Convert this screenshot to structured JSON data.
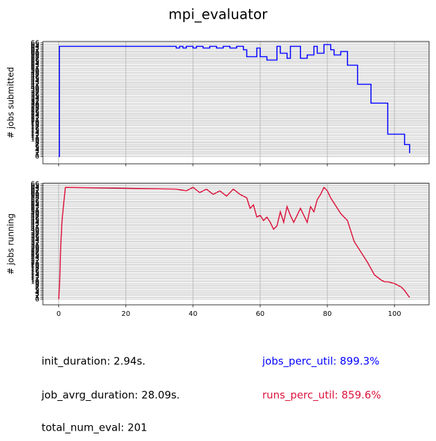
{
  "title": "mpi_evaluator",
  "chart_data": [
    {
      "type": "line",
      "drawstyle": "steps-post",
      "ylabel": "# jobs submitted",
      "x": [
        0,
        0.2,
        35,
        36,
        37,
        38,
        40,
        41,
        43,
        45,
        47,
        49,
        51,
        53,
        55,
        56,
        59,
        60,
        62,
        65,
        66,
        68,
        69,
        72,
        74,
        76,
        77,
        79,
        81,
        82,
        84,
        86,
        89,
        93,
        98,
        103,
        104.5
      ],
      "series": [
        {
          "color": "#0000ff",
          "values": [
            0,
            64,
            63,
            64,
            63,
            64,
            63,
            64,
            63,
            64,
            63,
            64,
            63,
            64,
            62,
            58,
            63,
            58,
            56,
            64,
            60,
            57,
            64,
            57,
            59,
            64,
            60,
            65,
            62,
            59,
            61,
            53,
            42,
            31,
            13,
            7,
            2
          ]
        }
      ],
      "xlim": [
        -4.7,
        110.3
      ],
      "xticks": [
        0,
        20,
        40,
        60,
        80,
        100
      ],
      "show_xtick_labels": false,
      "ylim": [
        -4.2,
        66.8
      ],
      "yticks": [
        0,
        1,
        2,
        3,
        4,
        5,
        6,
        7,
        8,
        9,
        10,
        11,
        12,
        13,
        14,
        15,
        16,
        17,
        18,
        19,
        20,
        21,
        22,
        23,
        24,
        25,
        26,
        27,
        28,
        29,
        30,
        31,
        32,
        33,
        34,
        35,
        36,
        37,
        38,
        39,
        40,
        41,
        42,
        43,
        44,
        45,
        46,
        47,
        48,
        49,
        50,
        51,
        52,
        53,
        54,
        55,
        56,
        57,
        58,
        59,
        60,
        61,
        62,
        63,
        64,
        65,
        66
      ],
      "grid": true
    },
    {
      "type": "line",
      "drawstyle": "default",
      "ylabel": "# jobs running",
      "x": [
        0,
        0.3,
        0.6,
        1,
        1.5,
        2,
        35,
        38,
        40,
        42,
        44,
        46,
        48,
        50,
        52,
        54,
        56,
        57,
        58,
        59,
        60,
        61,
        62,
        63,
        64,
        65,
        66,
        67,
        68,
        69,
        70,
        72,
        74,
        75,
        76,
        77,
        78,
        79,
        80,
        81,
        82,
        84,
        86,
        88,
        90,
        92,
        94,
        96,
        97,
        98,
        100,
        102,
        103,
        104.5
      ],
      "series": [
        {
          "color": "#dc143c",
          "values": [
            0,
            10,
            30,
            45,
            55,
            64,
            63,
            62,
            64,
            61,
            63,
            60,
            62,
            59,
            63,
            60,
            58,
            52,
            54,
            47,
            48,
            45,
            47,
            44,
            40,
            42,
            50,
            44,
            53,
            48,
            44,
            52,
            44,
            53,
            50,
            57,
            60,
            64,
            62,
            58,
            55,
            49,
            45,
            33,
            27,
            21,
            14,
            11,
            10,
            10,
            9,
            7,
            5,
            1
          ]
        }
      ],
      "xlim": [
        -4.7,
        110.3
      ],
      "xticks": [
        0,
        20,
        40,
        60,
        80,
        100
      ],
      "show_xtick_labels": true,
      "ylim": [
        -3.2,
        66.4
      ],
      "yticks": [
        0,
        1,
        2,
        3,
        4,
        5,
        6,
        7,
        8,
        9,
        10,
        11,
        12,
        13,
        14,
        15,
        16,
        17,
        18,
        19,
        20,
        21,
        22,
        23,
        24,
        25,
        26,
        27,
        28,
        29,
        30,
        31,
        32,
        33,
        34,
        35,
        36,
        37,
        38,
        39,
        40,
        41,
        42,
        43,
        44,
        45,
        46,
        47,
        48,
        49,
        50,
        51,
        52,
        53,
        54,
        55,
        56,
        57,
        58,
        59,
        60,
        61,
        62,
        63,
        64,
        65,
        66
      ],
      "grid": true
    }
  ],
  "annotations": [
    {
      "text": "init_duration: 2.94s.",
      "color": "#000000"
    },
    {
      "text": "jobs_perc_util: 899.3%",
      "color": "#0000ff"
    },
    {
      "text": "job_avrg_duration: 28.09s.",
      "color": "#000000"
    },
    {
      "text": "runs_perc_util: 859.6%",
      "color": "#dc143c"
    },
    {
      "text": "total_num_eval: 201",
      "color": "#000000"
    }
  ]
}
